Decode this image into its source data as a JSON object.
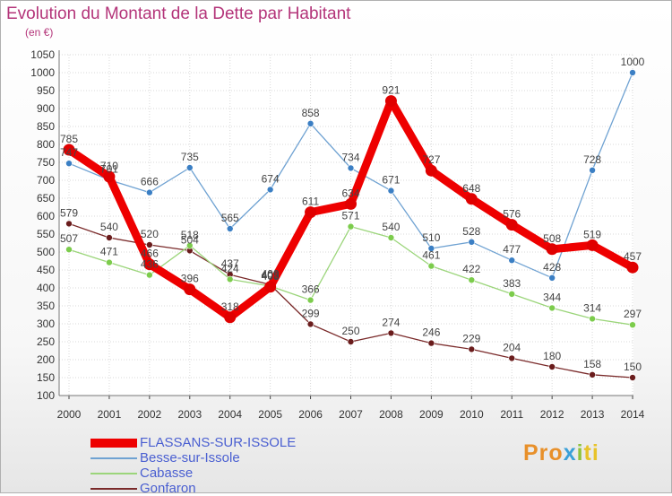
{
  "title": "Evolution du Montant de la Dette par Habitant",
  "unit": "(en €)",
  "logo": [
    "Pro",
    "x",
    "i",
    "ti"
  ],
  "chart_data": {
    "type": "line",
    "title": "Evolution du Montant de la Dette par Habitant",
    "ylabel": "(en €)",
    "xlabel": "",
    "ylim": [
      100,
      1050
    ],
    "yticks": [
      100,
      150,
      200,
      250,
      300,
      350,
      400,
      450,
      500,
      550,
      600,
      650,
      700,
      750,
      800,
      850,
      900,
      950,
      1000,
      1050
    ],
    "grid": true,
    "legend_position": "bottom-left",
    "x": [
      "2000",
      "2001",
      "2002",
      "2003",
      "2004",
      "2005",
      "2006",
      "2007",
      "2008",
      "2009",
      "2010",
      "2011",
      "2012",
      "2013",
      "2014"
    ],
    "series": [
      {
        "name": "FLASSANS-SUR-ISSOLE",
        "color": "#ee0000",
        "marker": "#e00000",
        "width": 9,
        "r": 6.5,
        "values": [
          785,
          710,
          466,
          396,
          318,
          403,
          611,
          634,
          921,
          727,
          648,
          576,
          508,
          519,
          457
        ]
      },
      {
        "name": "Besse-sur-Issole",
        "color": "#6fa2d2",
        "marker": "#3b7fc4",
        "width": 1.3,
        "r": 3.5,
        "values": [
          747,
          701,
          666,
          735,
          565,
          674,
          858,
          734,
          671,
          510,
          528,
          477,
          428,
          728,
          1000
        ]
      },
      {
        "name": "Cabasse",
        "color": "#9bd57a",
        "marker": "#7ccc4c",
        "width": 1.3,
        "r": 3.5,
        "values": [
          507,
          471,
          436,
          518,
          424,
          405,
          366,
          571,
          540,
          461,
          422,
          383,
          344,
          314,
          297
        ]
      },
      {
        "name": "Gonfaron",
        "color": "#7a2a2a",
        "marker": "#6a1c1c",
        "width": 1.3,
        "r": 3.5,
        "values": [
          579,
          540,
          520,
          504,
          437,
          409,
          299,
          250,
          274,
          246,
          229,
          204,
          180,
          158,
          150
        ]
      }
    ]
  }
}
